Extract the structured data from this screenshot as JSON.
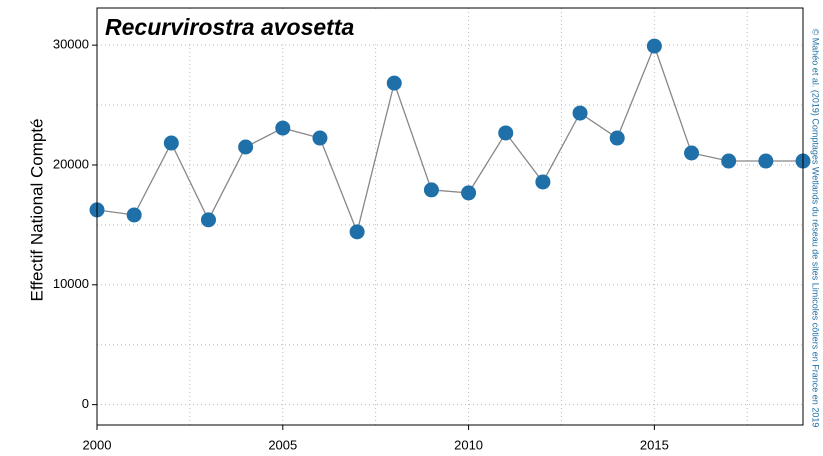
{
  "chart_data": {
    "type": "line",
    "title": "Recurvirostra avosetta",
    "y_label": "Effectif National Compté",
    "credit": "© Mahéo et al. (2019) Comptages Wetlands du réseau de sites Limicoles côtiers en France en 2019",
    "x": [
      2000,
      2001,
      2002,
      2003,
      2004,
      2005,
      2006,
      2007,
      2008,
      2009,
      2010,
      2011,
      2012,
      2013,
      2014,
      2015,
      2016,
      2017,
      2018,
      2019
    ],
    "series": [
      {
        "name": "Recurvirostra avosetta",
        "color": "#1f6fa8",
        "values": [
          16250,
          15830,
          21830,
          15420,
          21500,
          23080,
          22250,
          14420,
          26830,
          17920,
          17670,
          22670,
          18580,
          24330,
          22250,
          29920,
          21000,
          20330,
          20330,
          20330
        ]
      }
    ],
    "line_color": "#888888",
    "xlim": [
      2000,
      2019
    ],
    "ylim": [
      -1700,
      33100
    ],
    "xticks": [
      2000,
      2005,
      2010,
      2015
    ],
    "yticks": [
      0,
      10000,
      20000,
      30000
    ],
    "minor_xticks": [
      2002.5,
      2007.5,
      2012.5,
      2017.5
    ],
    "minor_yticks": [
      5000,
      15000,
      25000
    ],
    "grid": true
  }
}
